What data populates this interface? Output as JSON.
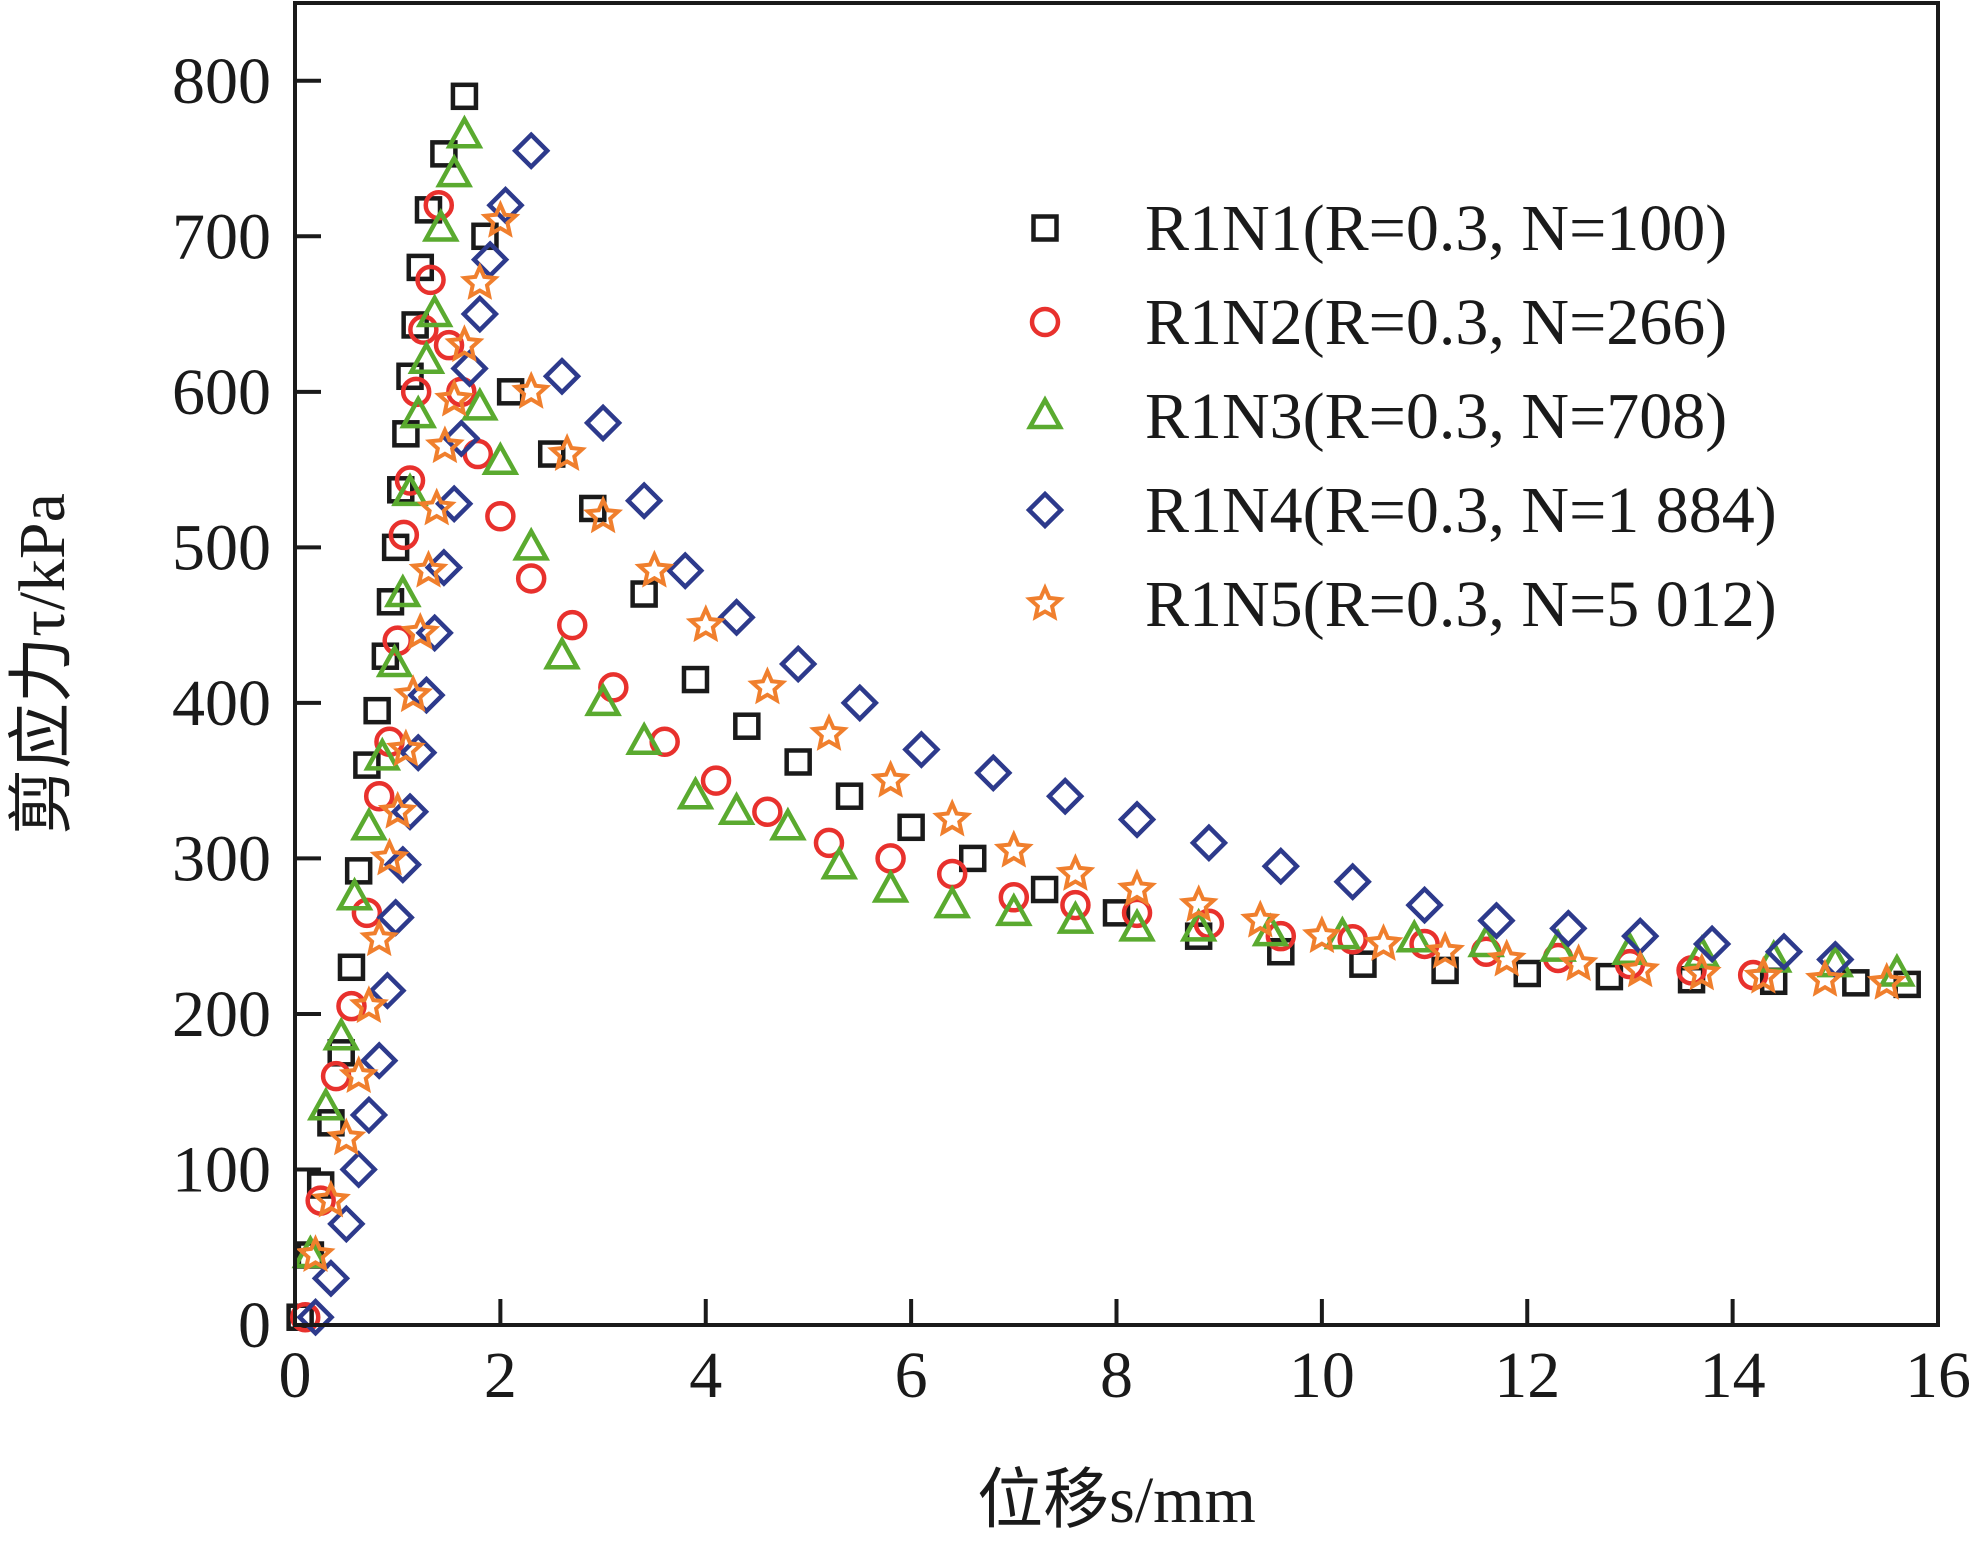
{
  "chart_data": {
    "type": "scatter",
    "title": "",
    "xlabel": "位移s/mm",
    "ylabel": "剪应力τ/kPa",
    "xlim": [
      0,
      16
    ],
    "ylim": [
      0,
      850
    ],
    "xticks": [
      0,
      2,
      4,
      6,
      8,
      10,
      12,
      14,
      16
    ],
    "yticks": [
      0,
      100,
      200,
      300,
      400,
      500,
      600,
      700,
      800
    ],
    "grid": false,
    "legend_position": "top-right",
    "series": [
      {
        "name": "R1N1(R=0.3, N=100)",
        "marker": "square",
        "color": "#1a1a1a",
        "x": [
          0.05,
          0.15,
          0.25,
          0.35,
          0.45,
          0.55,
          0.62,
          0.7,
          0.8,
          0.88,
          0.93,
          0.98,
          1.03,
          1.08,
          1.12,
          1.17,
          1.22,
          1.3,
          1.45,
          1.65,
          1.85,
          2.1,
          2.5,
          2.9,
          3.4,
          3.9,
          4.4,
          4.9,
          5.4,
          6.0,
          6.6,
          7.3,
          8.0,
          8.8,
          9.6,
          10.4,
          11.2,
          12.0,
          12.8,
          13.6,
          14.4,
          15.2,
          15.7
        ],
        "y": [
          5,
          45,
          90,
          130,
          175,
          230,
          292,
          360,
          395,
          430,
          465,
          500,
          537,
          573,
          610,
          643,
          680,
          717,
          753,
          790,
          700,
          600,
          560,
          525,
          470,
          415,
          385,
          362,
          340,
          320,
          300,
          280,
          265,
          250,
          240,
          232,
          228,
          226,
          224,
          222,
          221,
          220,
          219
        ]
      },
      {
        "name": "R1N2(R=0.3, N=266)",
        "marker": "circle",
        "color": "#e8312d",
        "x": [
          0.1,
          0.25,
          0.4,
          0.55,
          0.7,
          0.82,
          0.92,
          1.0,
          1.06,
          1.12,
          1.18,
          1.25,
          1.32,
          1.4,
          1.5,
          1.62,
          1.78,
          2.0,
          2.3,
          2.7,
          3.1,
          3.6,
          4.1,
          4.6,
          5.2,
          5.8,
          6.4,
          7.0,
          7.6,
          8.2,
          8.9,
          9.6,
          10.3,
          11.0,
          11.6,
          12.3,
          13.0,
          13.6,
          14.2
        ],
        "y": [
          5,
          80,
          160,
          205,
          265,
          340,
          375,
          440,
          508,
          543,
          600,
          640,
          672,
          720,
          630,
          600,
          560,
          520,
          480,
          450,
          410,
          375,
          350,
          330,
          310,
          300,
          290,
          275,
          270,
          265,
          258,
          250,
          248,
          245,
          240,
          236,
          232,
          228,
          225
        ]
      },
      {
        "name": "R1N3(R=0.3, N=708)",
        "marker": "triangle",
        "color": "#5aaa2f",
        "x": [
          0.15,
          0.3,
          0.45,
          0.58,
          0.72,
          0.85,
          0.97,
          1.05,
          1.12,
          1.2,
          1.28,
          1.36,
          1.42,
          1.55,
          1.65,
          1.8,
          2.0,
          2.3,
          2.6,
          3.0,
          3.4,
          3.9,
          4.3,
          4.8,
          5.3,
          5.8,
          6.4,
          7.0,
          7.6,
          8.2,
          8.8,
          9.5,
          10.2,
          10.9,
          11.6,
          12.3,
          13.0,
          13.7,
          14.4,
          15.0,
          15.6
        ],
        "y": [
          45,
          140,
          185,
          275,
          320,
          365,
          425,
          470,
          535,
          585,
          620,
          650,
          705,
          740,
          765,
          590,
          555,
          500,
          430,
          400,
          375,
          340,
          330,
          320,
          295,
          280,
          270,
          265,
          260,
          255,
          255,
          252,
          250,
          248,
          245,
          242,
          240,
          238,
          235,
          232,
          226
        ]
      },
      {
        "name": "R1N4(R=0.3, N=1 884)",
        "marker": "diamond",
        "color": "#2d3a8c",
        "x": [
          0.2,
          0.35,
          0.5,
          0.62,
          0.72,
          0.82,
          0.9,
          0.98,
          1.05,
          1.12,
          1.2,
          1.28,
          1.36,
          1.45,
          1.55,
          1.62,
          1.7,
          1.8,
          1.9,
          2.05,
          2.3,
          2.6,
          3.0,
          3.4,
          3.8,
          4.3,
          4.9,
          5.5,
          6.1,
          6.8,
          7.5,
          8.2,
          8.9,
          9.6,
          10.3,
          11.0,
          11.7,
          12.4,
          13.1,
          13.8,
          14.5,
          15.0
        ],
        "y": [
          5,
          30,
          65,
          100,
          135,
          170,
          215,
          262,
          296,
          330,
          368,
          405,
          445,
          487,
          528,
          570,
          615,
          650,
          685,
          720,
          755,
          610,
          580,
          530,
          485,
          455,
          425,
          400,
          370,
          355,
          340,
          325,
          310,
          295,
          285,
          270,
          260,
          255,
          250,
          245,
          240,
          235
        ]
      },
      {
        "name": "R1N5(R=0.3, N=5 012)",
        "marker": "star",
        "color": "#f07f2d",
        "x": [
          0.2,
          0.35,
          0.5,
          0.62,
          0.72,
          0.82,
          0.92,
          1.0,
          1.08,
          1.15,
          1.22,
          1.3,
          1.38,
          1.46,
          1.55,
          1.65,
          1.8,
          2.0,
          2.3,
          2.65,
          3.0,
          3.5,
          4.0,
          4.6,
          5.2,
          5.8,
          6.4,
          7.0,
          7.6,
          8.2,
          8.8,
          9.4,
          10.0,
          10.6,
          11.2,
          11.8,
          12.5,
          13.1,
          13.7,
          14.3,
          14.9,
          15.5
        ],
        "y": [
          45,
          80,
          120,
          160,
          205,
          248,
          300,
          330,
          370,
          405,
          445,
          485,
          525,
          565,
          595,
          630,
          670,
          710,
          600,
          560,
          520,
          485,
          450,
          410,
          380,
          350,
          325,
          305,
          290,
          280,
          270,
          260,
          250,
          245,
          240,
          235,
          232,
          228,
          226,
          224,
          222,
          220
        ]
      }
    ]
  }
}
